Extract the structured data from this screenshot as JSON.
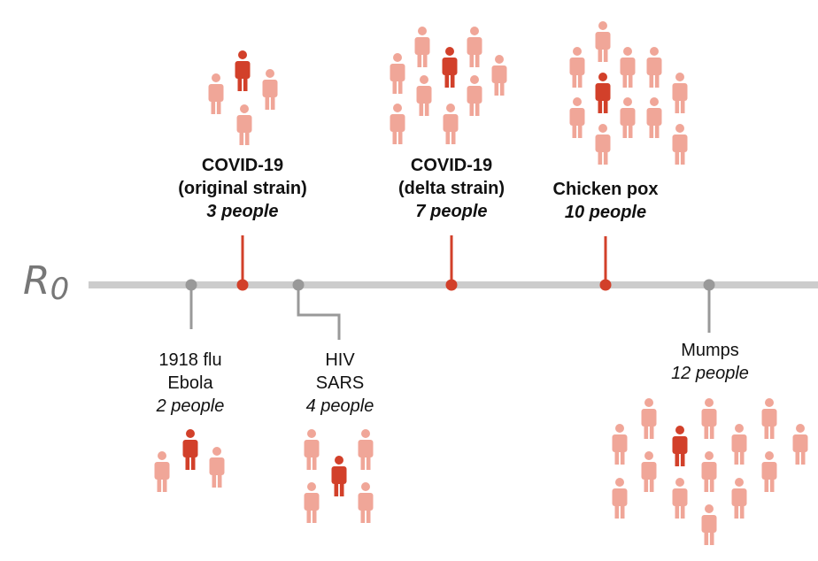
{
  "axis": {
    "main": "R",
    "sub": "0",
    "line_color": "#cccccc"
  },
  "colors": {
    "highlight": "#d2402a",
    "light": "#f0a698",
    "gray": "#999999"
  },
  "diseases": [
    {
      "id": "flu-ebola",
      "names": [
        "1918 flu",
        "Ebola"
      ],
      "count_text": "2 people",
      "count": 2,
      "highlight": false,
      "side": "below"
    },
    {
      "id": "covid-original",
      "names": [
        "COVID-19",
        "(original strain)"
      ],
      "count_text": "3 people",
      "count": 3,
      "highlight": true,
      "side": "above"
    },
    {
      "id": "hiv-sars",
      "names": [
        "HIV",
        "SARS"
      ],
      "count_text": "4 people",
      "count": 4,
      "highlight": false,
      "side": "below"
    },
    {
      "id": "covid-delta",
      "names": [
        "COVID-19",
        "(delta strain)"
      ],
      "count_text": "7 people",
      "count": 7,
      "highlight": true,
      "side": "above"
    },
    {
      "id": "chicken-pox",
      "names": [
        "Chicken pox"
      ],
      "count_text": "10 people",
      "count": 10,
      "highlight": true,
      "side": "above"
    },
    {
      "id": "mumps",
      "names": [
        "Mumps"
      ],
      "count_text": "12 people",
      "count": 12,
      "highlight": false,
      "side": "below"
    }
  ]
}
